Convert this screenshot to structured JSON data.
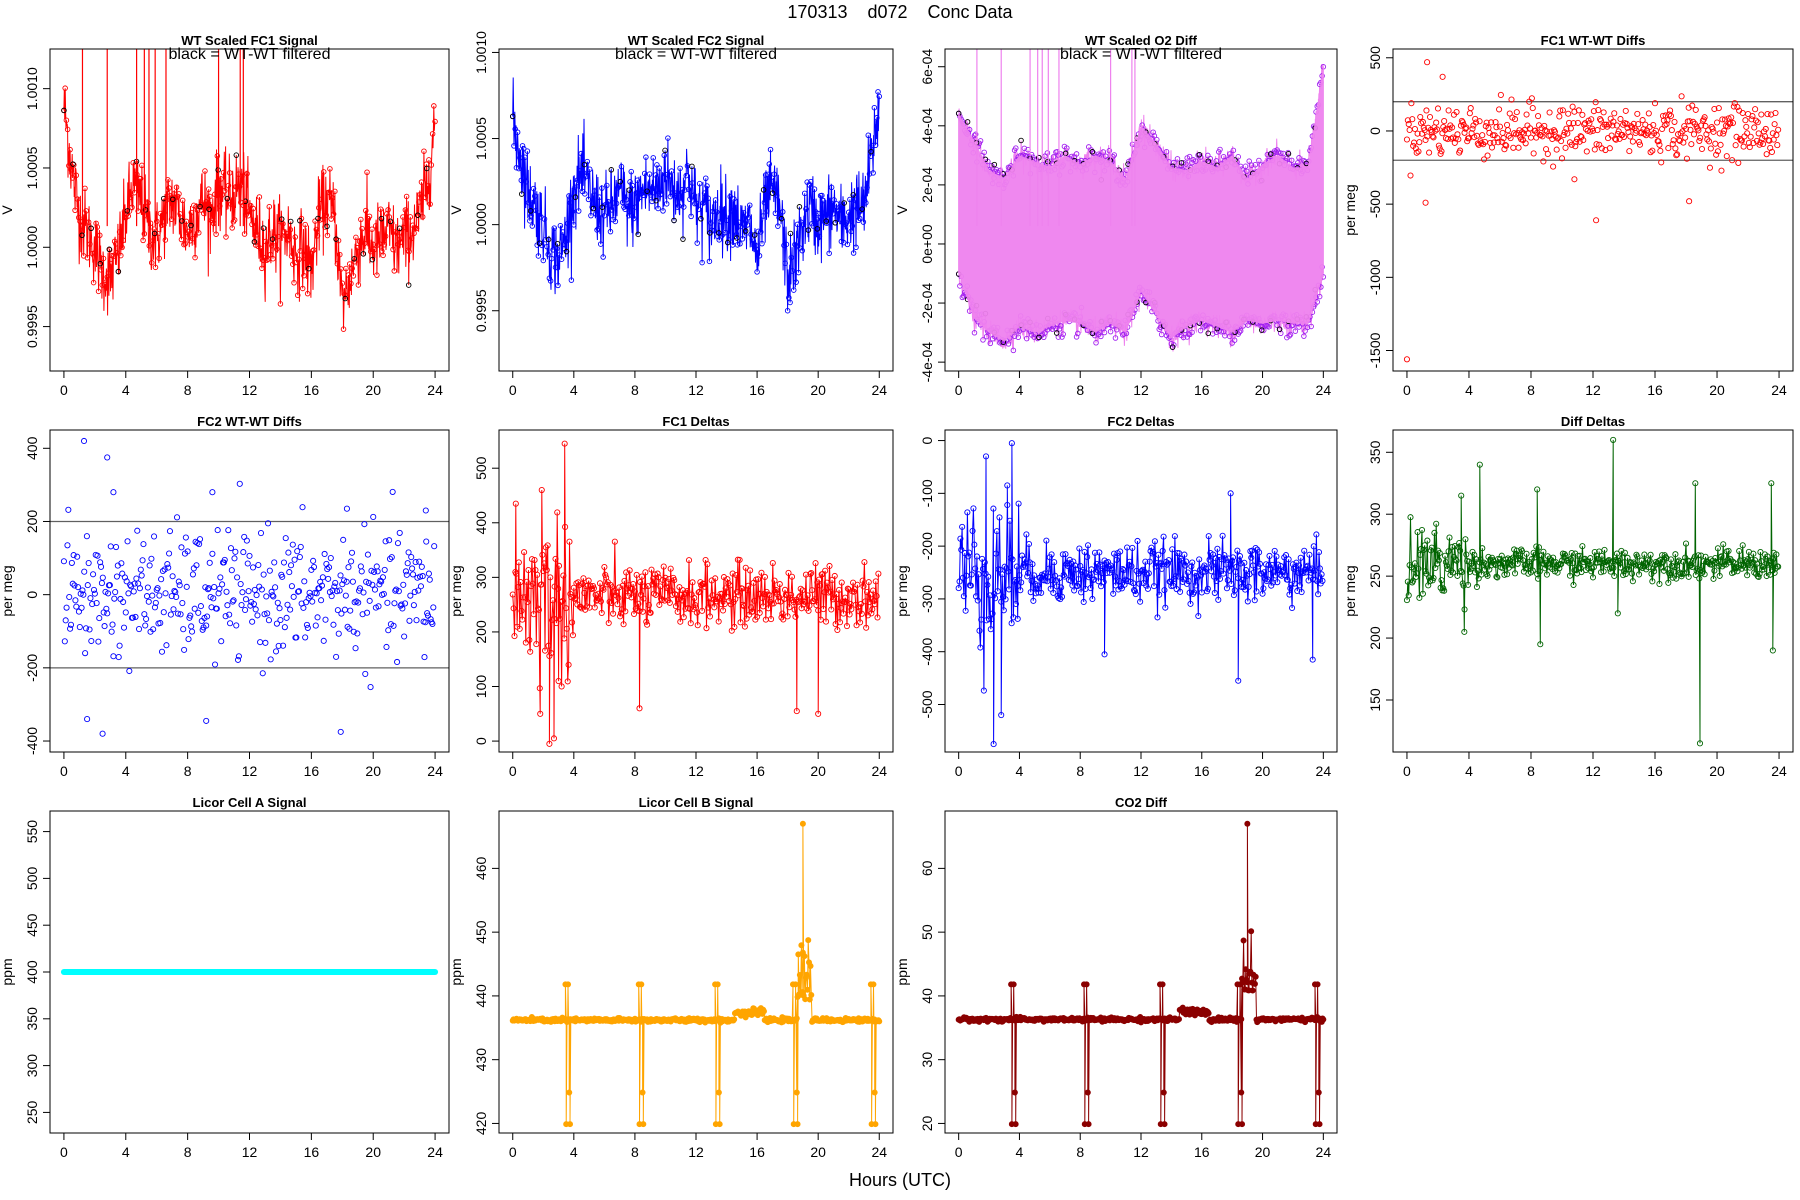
{
  "figure": {
    "title_parts": [
      "170313",
      "d072",
      "Conc Data"
    ],
    "xlabel": "Hours (UTC)"
  },
  "colors": {
    "fc1": "#ff0000",
    "fc2": "#0000ff",
    "o2": "#ee82ee",
    "o2pt": "#a020f0",
    "diffdelta": "#006400",
    "licora": "#00ffff",
    "licorb": "#ffa500",
    "co2": "#8b0000",
    "ref": "#606060",
    "filtered": "#000000"
  },
  "chart_data": [
    {
      "id": "fc1",
      "type": "line",
      "title": "WT Scaled FC1 Signal",
      "ylabel": "V",
      "legend_text": "black = WT-WT filtered",
      "x_ticks": [
        0,
        4,
        8,
        12,
        16,
        20,
        24
      ],
      "xlim": [
        -0.9,
        24.9
      ],
      "y_ticks": [
        0.9995,
        1.0,
        1.0005,
        1.001
      ],
      "y_tick_labels": [
        "0.9995",
        "1.0000",
        "1.0005",
        "1.0010"
      ],
      "ylim": [
        0.99922,
        1.00125
      ],
      "series": [
        {
          "name": "FC1 signal",
          "color": "#ff0000",
          "x": [
            0,
            0.5,
            1,
            1.5,
            2,
            2.5,
            3,
            3.5,
            4,
            4.5,
            5,
            5.5,
            6,
            6.5,
            7,
            7.5,
            8,
            8.5,
            9,
            9.5,
            10,
            10.5,
            11,
            11.5,
            12,
            12.5,
            13,
            13.5,
            14,
            14.5,
            15,
            15.5,
            16,
            16.5,
            17,
            17.5,
            18,
            18.5,
            19,
            19.5,
            20,
            20.5,
            21,
            21.5,
            22,
            22.5,
            23,
            23.5,
            24
          ],
          "y": [
            1.0009,
            1.0005,
            1.0002,
            1.0001,
            1.0,
            0.99985,
            0.9998,
            0.99995,
            1.0002,
            1.0004,
            1.0003,
            1.0001,
            1.00005,
            1.0002,
            1.0003,
            1.0002,
            1.0001,
            1.0002,
            1.0003,
            1.0002,
            1.0004,
            1.0003,
            1.00035,
            1.0004,
            1.0002,
            1.0001,
            1.0,
            1.0001,
            1.00005,
            1.0001,
            0.99995,
            1.0,
            0.99985,
            1.0002,
            1.0003,
            1.0002,
            0.99965,
            0.9998,
            1.0,
            1.0001,
            1.0,
            1.00005,
            1.0001,
            1.0,
            1.00005,
            1.0001,
            1.0002,
            1.0004,
            1.0008
          ]
        }
      ],
      "noise": 0.00012,
      "marker": "circle",
      "spikes": true
    },
    {
      "id": "fc2",
      "type": "line",
      "title": "WT Scaled FC2 Signal",
      "ylabel": "V",
      "legend_text": "black = WT-WT filtered",
      "x_ticks": [
        0,
        4,
        8,
        12,
        16,
        20,
        24
      ],
      "xlim": [
        -0.9,
        24.9
      ],
      "y_ticks": [
        0.9995,
        1.0,
        1.0005,
        1.001
      ],
      "y_tick_labels": [
        "0.9995",
        "1.0000",
        "1.0005",
        "1.0010"
      ],
      "ylim": [
        0.99915,
        1.00102
      ],
      "series": [
        {
          "name": "FC2 signal",
          "color": "#0000ff",
          "x": [
            0,
            0.5,
            1,
            1.5,
            2,
            2.5,
            3,
            3.5,
            4,
            4.5,
            5,
            5.5,
            6,
            6.5,
            7,
            7.5,
            8,
            8.5,
            9,
            9.5,
            10,
            10.5,
            11,
            11.5,
            12,
            12.5,
            13,
            13.5,
            14,
            14.5,
            15,
            15.5,
            16,
            16.5,
            17,
            17.5,
            18,
            18.5,
            19,
            19.5,
            20,
            20.5,
            21,
            21.5,
            22,
            22.5,
            23,
            23.5,
            24
          ],
          "y": [
            1.0006,
            1.0004,
            1.0002,
            1.0001,
            1.0,
            0.99985,
            0.9998,
            0.99995,
            1.0002,
            1.0003,
            1.0002,
            1.0001,
            1.00005,
            1.0001,
            1.0002,
            1.0001,
            1.0001,
            1.0002,
            1.0002,
            1.0002,
            1.0003,
            1.0002,
            1.0002,
            1.0003,
            1.0001,
            1.0001,
            1.0,
            1.0001,
            1.00005,
            1.0001,
            0.99995,
            1.0,
            0.9998,
            1.0001,
            1.0002,
            1.0001,
            0.9997,
            0.9998,
            1.0,
            1.0001,
            1.0,
            1.00005,
            1.0001,
            1.0,
            1.00005,
            1.0001,
            1.0001,
            1.0004,
            1.0007
          ]
        }
      ],
      "noise": 0.00011,
      "marker": "circle",
      "spikes": false
    },
    {
      "id": "o2",
      "type": "band",
      "title": "WT Scaled O2 Diff",
      "ylabel": "V",
      "legend_text": "black = WT-WT filtered",
      "x_ticks": [
        0,
        4,
        8,
        12,
        16,
        20,
        24
      ],
      "xlim": [
        -0.9,
        24.9
      ],
      "y_ticks": [
        -0.0004,
        -0.0002,
        0,
        0.0002,
        0.0004,
        0.0006
      ],
      "y_tick_labels": [
        "-4e-04",
        "-2e-04",
        "0e+00",
        "2e-04",
        "4e-04",
        "6e-04"
      ],
      "ylim": [
        -0.00043,
        0.00066
      ],
      "series": [
        {
          "name": "O2 diff upper",
          "color": "#a020f0",
          "x": [
            0,
            1,
            2,
            3,
            4,
            5,
            6,
            7,
            8,
            9,
            10,
            11,
            12,
            13,
            14,
            15,
            16,
            17,
            18,
            19,
            20,
            21,
            22,
            23,
            24
          ],
          "y": [
            0.00044,
            0.00035,
            0.00025,
            0.00022,
            0.0003,
            0.00028,
            0.00026,
            0.0003,
            0.00027,
            0.0003,
            0.00028,
            0.00022,
            0.0004,
            0.00034,
            0.00026,
            0.00025,
            0.00028,
            0.00026,
            0.0003,
            0.00022,
            0.00027,
            0.0003,
            0.00026,
            0.00026,
            0.0006
          ]
        },
        {
          "name": "O2 diff lower",
          "color": "#a020f0",
          "x": [
            0,
            1,
            2,
            3,
            4,
            5,
            6,
            7,
            8,
            9,
            10,
            11,
            12,
            13,
            14,
            15,
            16,
            17,
            18,
            19,
            20,
            21,
            22,
            23,
            24
          ],
          "y": [
            -0.0001,
            -0.00025,
            -0.0003,
            -0.00033,
            -0.00028,
            -0.0003,
            -0.00028,
            -0.00026,
            -0.00027,
            -0.0003,
            -0.00027,
            -0.0003,
            -0.00016,
            -0.00024,
            -0.00032,
            -0.00028,
            -0.00026,
            -0.00028,
            -0.0003,
            -0.00026,
            -0.00027,
            -0.00026,
            -0.00027,
            -0.00027,
            -0.0001
          ]
        }
      ],
      "noise": 2e-05,
      "marker": "circle",
      "spikes": true
    },
    {
      "id": "fc1d",
      "type": "scatter",
      "title": "FC1 WT-WT Diffs",
      "ylabel": "per meg",
      "x_ticks": [
        0,
        4,
        8,
        12,
        16,
        20,
        24
      ],
      "xlim": [
        -0.9,
        24.9
      ],
      "y_ticks": [
        -1500,
        -1000,
        -500,
        0,
        500
      ],
      "y_tick_labels": [
        "-1500",
        "-1000",
        "-500",
        "0",
        "500"
      ],
      "ylim": [
        -1640,
        560
      ],
      "ref_lines": [
        200,
        -200
      ],
      "points_n": 420,
      "spread": 90,
      "outliers": [
        {
          "x": 0,
          "y": -1560
        },
        {
          "x": 1.3,
          "y": 470
        },
        {
          "x": 2.3,
          "y": 370
        },
        {
          "x": 12.2,
          "y": -610
        },
        {
          "x": 1.2,
          "y": -490
        },
        {
          "x": 18.2,
          "y": -480
        },
        {
          "x": 10.8,
          "y": -330
        }
      ],
      "color": "#ff0000"
    },
    {
      "id": "fc2d",
      "type": "scatter",
      "title": "FC2 WT-WT Diffs",
      "ylabel": "per meg",
      "x_ticks": [
        0,
        4,
        8,
        12,
        16,
        20,
        24
      ],
      "xlim": [
        -0.9,
        24.9
      ],
      "y_ticks": [
        -400,
        -200,
        0,
        200,
        400
      ],
      "y_tick_labels": [
        "-400",
        "-200",
        "0",
        "200",
        "400"
      ],
      "ylim": [
        -430,
        450
      ],
      "ref_lines": [
        200,
        -200
      ],
      "points_n": 420,
      "spread": 85,
      "outliers": [
        {
          "x": 1.3,
          "y": 420
        },
        {
          "x": 2.8,
          "y": 375
        },
        {
          "x": 3.2,
          "y": 280
        },
        {
          "x": 2.5,
          "y": -380
        },
        {
          "x": 1.5,
          "y": -340
        },
        {
          "x": 17.9,
          "y": -375
        },
        {
          "x": 9.2,
          "y": -345
        },
        {
          "x": 9.6,
          "y": 280
        },
        {
          "x": 18.3,
          "y": 235
        },
        {
          "x": 23.4,
          "y": 230
        }
      ],
      "color": "#0000ff"
    },
    {
      "id": "fc1del",
      "type": "linepoints",
      "title": "FC1 Deltas",
      "ylabel": "per meg",
      "x_ticks": [
        0,
        4,
        8,
        12,
        16,
        20,
        24
      ],
      "xlim": [
        -0.9,
        24.9
      ],
      "y_ticks": [
        0,
        100,
        200,
        300,
        400,
        500
      ],
      "y_tick_labels": [
        "0",
        "100",
        "200",
        "300",
        "400",
        "500"
      ],
      "ylim": [
        -20,
        570
      ],
      "base": 265,
      "spread": 28,
      "points_n": 420,
      "outliers": [
        {
          "x": 3.4,
          "y": 545
        },
        {
          "x": 0.2,
          "y": 435
        },
        {
          "x": 1.9,
          "y": 460
        },
        {
          "x": 2.4,
          "y": -5
        },
        {
          "x": 2.7,
          "y": 5
        },
        {
          "x": 1.8,
          "y": 50
        },
        {
          "x": 18.6,
          "y": 55
        },
        {
          "x": 20.0,
          "y": 50
        },
        {
          "x": 8.3,
          "y": 60
        },
        {
          "x": 3.0,
          "y": 110
        }
      ],
      "color": "#ff0000"
    },
    {
      "id": "fc2del",
      "type": "linepoints",
      "title": "FC2 Deltas",
      "ylabel": "per meg",
      "x_ticks": [
        0,
        4,
        8,
        12,
        16,
        20,
        24
      ],
      "xlim": [
        -0.9,
        24.9
      ],
      "y_ticks": [
        -500,
        -400,
        -300,
        -200,
        -100,
        0
      ],
      "y_tick_labels": [
        "-500",
        "-400",
        "-300",
        "-200",
        "-100",
        "0"
      ],
      "ylim": [
        -590,
        20
      ],
      "base": -250,
      "spread": 28,
      "points_n": 420,
      "outliers": [
        {
          "x": 3.5,
          "y": -5
        },
        {
          "x": 2.3,
          "y": -575
        },
        {
          "x": 1.8,
          "y": -30
        },
        {
          "x": 2.8,
          "y": -520
        },
        {
          "x": 18.4,
          "y": -455
        },
        {
          "x": 17.9,
          "y": -100
        },
        {
          "x": 23.3,
          "y": -415
        },
        {
          "x": 9.6,
          "y": -405
        },
        {
          "x": 3.2,
          "y": -85
        }
      ],
      "color": "#0000ff"
    },
    {
      "id": "diffdel",
      "type": "linepoints",
      "title": "Diff Deltas",
      "ylabel": "per meg",
      "x_ticks": [
        0,
        4,
        8,
        12,
        16,
        20,
        24
      ],
      "xlim": [
        -0.9,
        24.9
      ],
      "y_ticks": [
        150,
        200,
        250,
        300,
        350
      ],
      "y_tick_labels": [
        "150",
        "200",
        "250",
        "300",
        "350"
      ],
      "ylim": [
        108,
        368
      ],
      "base": 260,
      "spread": 6,
      "points_n": 420,
      "outliers": [
        {
          "x": 13.3,
          "y": 360
        },
        {
          "x": 3.5,
          "y": 315
        },
        {
          "x": 8.4,
          "y": 320
        },
        {
          "x": 18.6,
          "y": 325
        },
        {
          "x": 18.9,
          "y": 115
        },
        {
          "x": 8.6,
          "y": 195
        },
        {
          "x": 23.5,
          "y": 325
        },
        {
          "x": 23.6,
          "y": 190
        },
        {
          "x": 13.6,
          "y": 220
        },
        {
          "x": 4.7,
          "y": 340
        },
        {
          "x": 3.7,
          "y": 205
        }
      ],
      "color": "#006400"
    },
    {
      "id": "licora",
      "type": "flat",
      "title": "Licor Cell A Signal",
      "ylabel": "ppm",
      "x_ticks": [
        0,
        4,
        8,
        12,
        16,
        20,
        24
      ],
      "xlim": [
        -0.9,
        24.9
      ],
      "y_ticks": [
        250,
        300,
        350,
        400,
        450,
        500,
        550
      ],
      "y_tick_labels": [
        "250",
        "300",
        "350",
        "400",
        "450",
        "500",
        "550"
      ],
      "ylim": [
        228,
        572
      ],
      "value": 400,
      "color": "#00ffff"
    },
    {
      "id": "licorb",
      "type": "licor",
      "title": "Licor Cell B Signal",
      "ylabel": "ppm",
      "x_ticks": [
        0,
        4,
        8,
        12,
        16,
        20,
        24
      ],
      "xlim": [
        -0.9,
        24.9
      ],
      "y_ticks": [
        420,
        430,
        440,
        450,
        460
      ],
      "y_tick_labels": [
        "420",
        "430",
        "440",
        "450",
        "460"
      ],
      "ylim": [
        418.5,
        469
      ],
      "base": 436.2,
      "cal_high": 441.8,
      "cal_low": 419.9,
      "cal_times": [
        3.5,
        8.3,
        13.3,
        18.4,
        23.5
      ],
      "peak": {
        "x": 19.0,
        "y": 467
      },
      "color": "#ffa500"
    },
    {
      "id": "co2",
      "type": "licor",
      "title": "CO2 Diff",
      "ylabel": "ppm",
      "x_ticks": [
        0,
        4,
        8,
        12,
        16,
        20,
        24
      ],
      "xlim": [
        -0.9,
        24.9
      ],
      "y_ticks": [
        20,
        30,
        40,
        50,
        60
      ],
      "y_tick_labels": [
        "20",
        "30",
        "40",
        "50",
        "60"
      ],
      "ylim": [
        18.5,
        69
      ],
      "base": 36.3,
      "cal_high": 41.8,
      "cal_low": 19.9,
      "cal_times": [
        3.5,
        8.3,
        13.3,
        18.4,
        23.5
      ],
      "peak": {
        "x": 19.0,
        "y": 67
      },
      "color": "#8b0000"
    }
  ]
}
